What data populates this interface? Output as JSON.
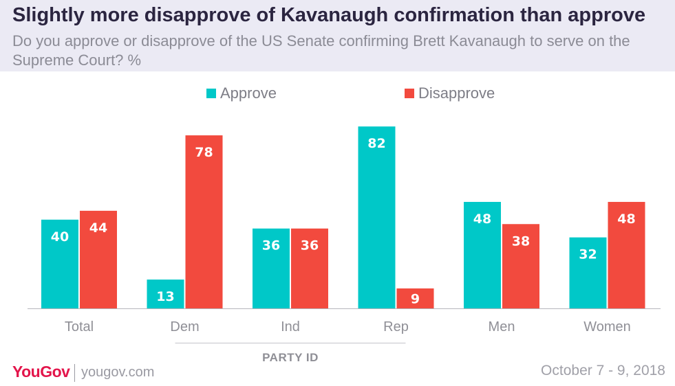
{
  "header": {
    "title": "Slightly more disapprove of Kavanaugh confirmation than approve",
    "subtitle": "Do you approve or disapprove of the US Senate confirming Brett Kavanaugh to serve on the Supreme Court? %"
  },
  "colors": {
    "approve": "#00c8c8",
    "disapprove": "#f24a3e",
    "header_bg": "#ebeaf4",
    "brand": "#e3154b"
  },
  "chart_data": {
    "type": "bar",
    "categories": [
      "Total",
      "Dem",
      "Ind",
      "Rep",
      "Men",
      "Women"
    ],
    "series": [
      {
        "name": "Approve",
        "values": [
          40,
          13,
          36,
          82,
          48,
          32
        ]
      },
      {
        "name": "Disapprove",
        "values": [
          44,
          78,
          36,
          9,
          38,
          48
        ]
      }
    ],
    "group_label": "PARTY ID",
    "ylim": [
      0,
      100
    ],
    "grid": false,
    "legend": "top-center"
  },
  "footer": {
    "logo": "YouGov",
    "url": "yougov.com",
    "date": "October 7 - 9, 2018"
  }
}
